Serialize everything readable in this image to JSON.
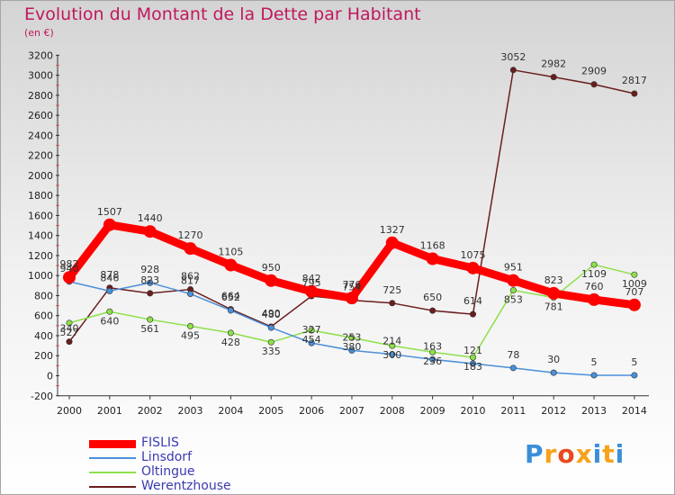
{
  "title": "Evolution du Montant de la Dette par Habitant",
  "subtitle": "(en €)",
  "logo_text": "Proxiti",
  "chart_data": {
    "type": "line",
    "title": "Evolution du Montant de la Dette par Habitant",
    "ylabel": "(en €)",
    "xlabel": "",
    "x": [
      2000,
      2001,
      2002,
      2003,
      2004,
      2005,
      2006,
      2007,
      2008,
      2009,
      2010,
      2011,
      2012,
      2013,
      2014
    ],
    "ylim": [
      -200,
      3200
    ],
    "yticks": [
      -200,
      0,
      200,
      400,
      600,
      800,
      1000,
      1200,
      1400,
      1600,
      1800,
      2000,
      2200,
      2400,
      2600,
      2800,
      3000,
      3200
    ],
    "grid": false,
    "legend_position": "bottom-left",
    "series": [
      {
        "name": "FISLIS",
        "color": "#ff0000",
        "values": [
          982,
          1507,
          1440,
          1270,
          1105,
          950,
          842,
          776,
          1327,
          1168,
          1075,
          951,
          823,
          760,
          707
        ]
      },
      {
        "name": "Linsdorf",
        "color": "#4a90d9",
        "values": [
          940,
          846,
          928,
          817,
          652,
          480,
          327,
          253,
          214,
          163,
          121,
          78,
          30,
          5,
          5
        ]
      },
      {
        "name": "Oltingue",
        "color": "#8ee04a",
        "values": [
          527,
          640,
          561,
          495,
          428,
          335,
          454,
          380,
          300,
          236,
          183,
          853,
          781,
          1109,
          1009
        ]
      },
      {
        "name": "Werentzhouse",
        "color": "#6b1e1e",
        "values": [
          340,
          878,
          823,
          862,
          664,
          490,
          795,
          754,
          725,
          650,
          614,
          3052,
          2982,
          2909,
          2817
        ]
      }
    ]
  }
}
